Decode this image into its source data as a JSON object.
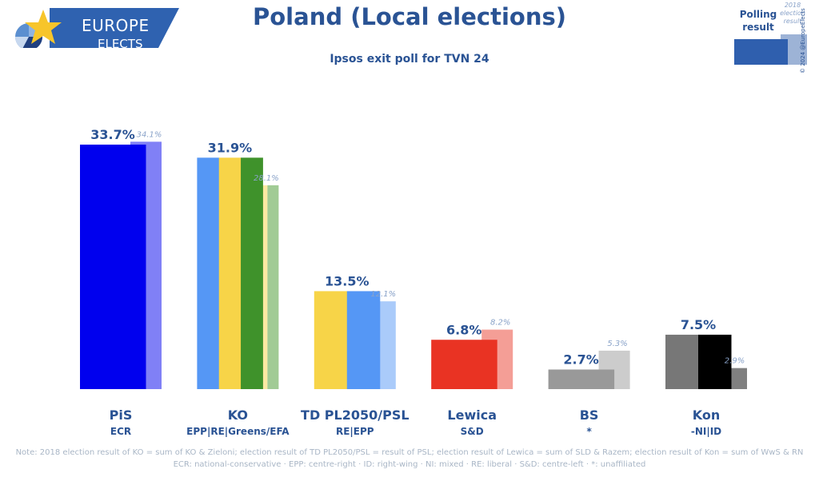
{
  "logo": {
    "line1": "EUROPE",
    "line2": "ELECTS",
    "brand_color": "#2f62b0",
    "star_color": "#f7c52b"
  },
  "header": {
    "title": "Poland (Local elections)",
    "subtitle": "Ipsos exit poll for TVN 24"
  },
  "legend": {
    "polling_label_1": "Polling",
    "polling_label_2": "result",
    "prev_label_1": "2018",
    "prev_label_2": "election",
    "prev_label_3": "result",
    "copyright": "© 2024 @EuropeElects"
  },
  "chart_data": {
    "type": "bar",
    "title": "Poland (Local elections)",
    "subtitle": "Ipsos exit poll for TVN 24",
    "xlabel": "",
    "ylabel": "",
    "ylim": [
      0,
      36
    ],
    "grid": false,
    "legend_position": "top-right",
    "categories": [
      "PiS",
      "KO",
      "TD PL2050/PSL",
      "Lewica",
      "BS",
      "Kon"
    ],
    "groups": [
      "ECR",
      "EPP|RE|Greens/EFA",
      "RE|EPP",
      "S&D",
      "*",
      "-NI|ID"
    ],
    "series": [
      {
        "name": "Polling result",
        "values": [
          33.7,
          31.9,
          13.5,
          6.8,
          2.7,
          7.5
        ],
        "labels": [
          "33.7%",
          "31.9%",
          "13.5%",
          "6.8%",
          "2.7%",
          "7.5%"
        ]
      },
      {
        "name": "2018 election result",
        "values": [
          34.1,
          28.1,
          12.1,
          8.2,
          5.3,
          2.9
        ],
        "labels": [
          "34.1%",
          "28.1%",
          "12.1%",
          "8.2%",
          "5.3%",
          "2.9%"
        ]
      }
    ],
    "poll_colors": [
      [
        "#0000ee"
      ],
      [
        "#5597f5",
        "#f7d448",
        "#3f922b"
      ],
      [
        "#f7d448",
        "#5597f5"
      ],
      [
        "#e93323"
      ],
      [
        "#999999"
      ],
      [
        "#777777",
        "#000000"
      ]
    ],
    "prev_colors": [
      [
        "#8080f6"
      ],
      [
        "#fbe9a3",
        "#a1cb95"
      ],
      [
        "#aacbfa"
      ],
      [
        "#f49e96"
      ],
      [
        "#cccccc"
      ],
      [
        "#808080"
      ]
    ]
  },
  "notes": {
    "line1": "Note: 2018 election result of KO = sum of KO & Zieloni; election result of TD PL2050/PSL = result of PSL; election result of Lewica = sum of SLD & Razem; election result of Kon = sum of WwS & RN",
    "line2": "ECR: national-conservative · EPP: centre-right · ID: right-wing · NI: mixed · RE: liberal · S&D: centre-left · *: unaffiliated"
  }
}
